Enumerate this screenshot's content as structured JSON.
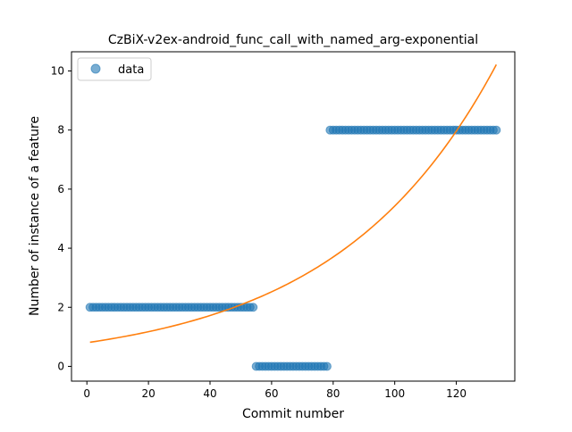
{
  "chart_data": {
    "type": "scatter",
    "title": "CzBiX-v2ex-android_func_call_with_named_arg-exponential",
    "xlabel": "Commit number",
    "ylabel": "Number of instance of a feature",
    "xlim": [
      -5,
      139
    ],
    "ylim": [
      -0.5,
      10.65
    ],
    "xticks": [
      0,
      20,
      40,
      60,
      80,
      100,
      120
    ],
    "yticks": [
      0,
      2,
      4,
      6,
      8,
      10
    ],
    "legend": {
      "position": "top-left",
      "entries": [
        "data"
      ]
    },
    "series": [
      {
        "name": "data",
        "kind": "scatter",
        "color": "#1f77b4",
        "segments": [
          {
            "x_start": 1,
            "x_end": 54,
            "y": 2
          },
          {
            "x_start": 55,
            "x_end": 78,
            "y": 0
          },
          {
            "x_start": 79,
            "x_end": 133,
            "y": 8
          }
        ]
      },
      {
        "name": "exponential fit",
        "kind": "line",
        "color": "#ff7f0e",
        "x_range": [
          1,
          133
        ],
        "model": "y = a * exp(b * x)",
        "a": 0.8,
        "b": 0.01915
      }
    ]
  }
}
